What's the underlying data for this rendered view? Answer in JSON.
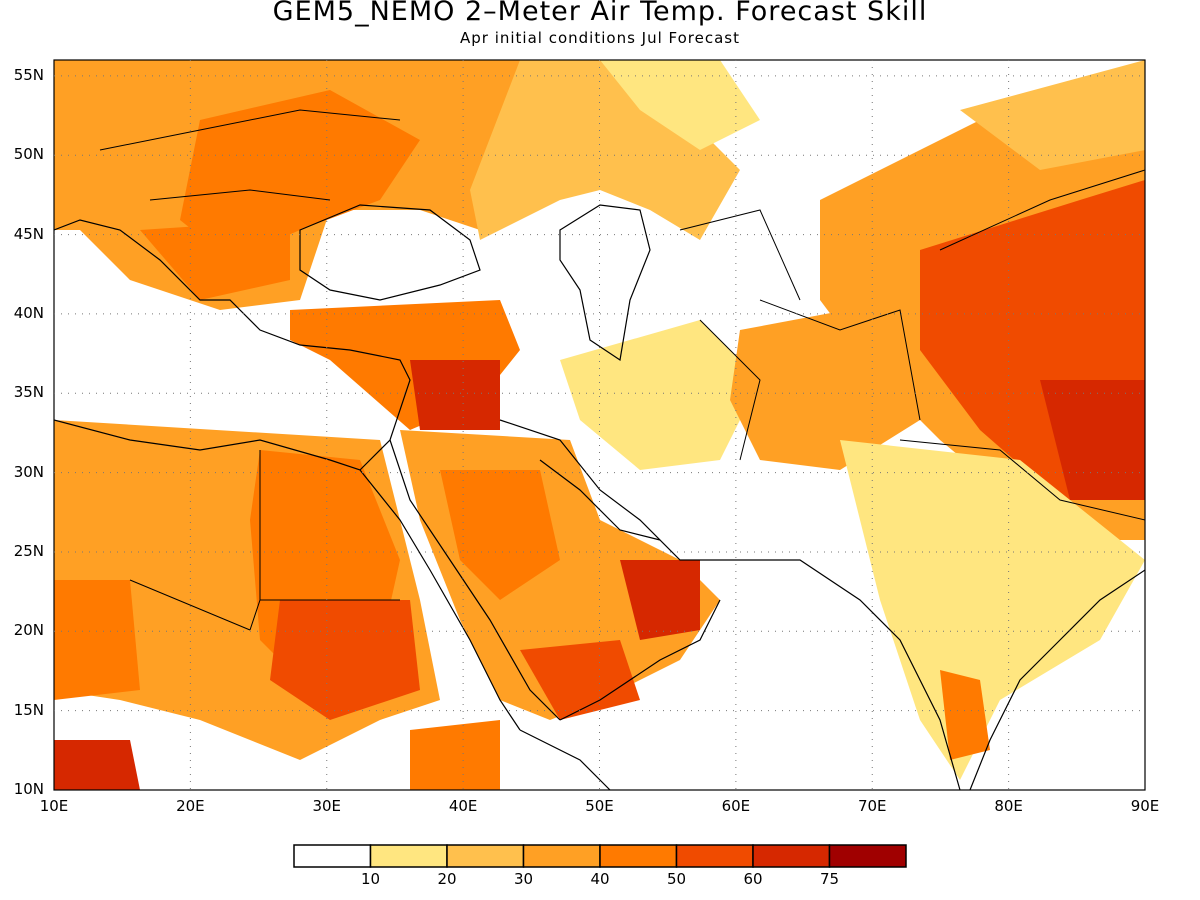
{
  "title": "GEM5_NEMO 2–Meter Air Temp. Forecast Skill",
  "subtitle": "Apr initial conditions   Jul Forecast",
  "map": {
    "lon_range": [
      10,
      90
    ],
    "lat_range": [
      10,
      56
    ],
    "lon_ticks": [
      "10E",
      "20E",
      "30E",
      "40E",
      "50E",
      "60E",
      "70E",
      "80E",
      "90E"
    ],
    "lat_ticks": [
      "10N",
      "15N",
      "20N",
      "25N",
      "30N",
      "35N",
      "40N",
      "45N",
      "50N",
      "55N"
    ],
    "grid": "dotted"
  },
  "colorbar": {
    "labels": [
      "10",
      "20",
      "30",
      "40",
      "50",
      "60",
      "75"
    ],
    "colors": [
      "#ffffff",
      "#ffe680",
      "#ffc04d",
      "#ffa024",
      "#ff7a00",
      "#f04b00",
      "#d62800",
      "#a00000"
    ]
  },
  "colors": {
    "water": "#ffffff",
    "land_low": "#ffffff",
    "coast": "#000000"
  }
}
